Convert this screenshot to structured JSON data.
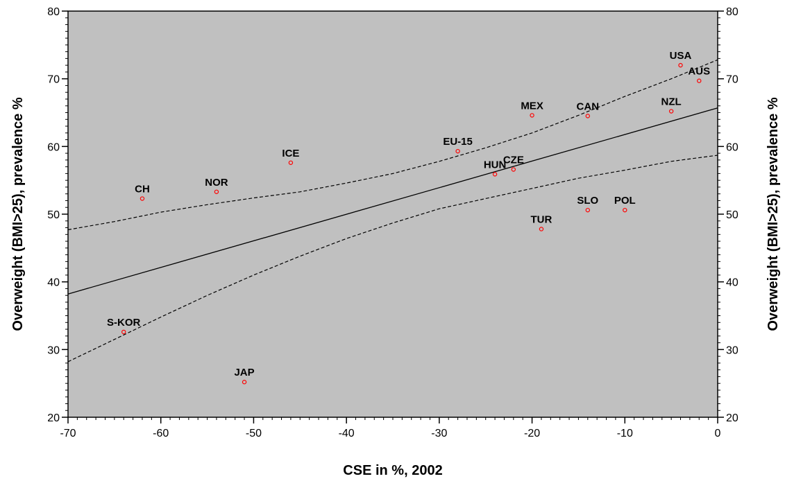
{
  "chart_data": {
    "type": "scatter",
    "xlabel": "CSE in %, 2002",
    "ylabel": "Overweight (BMI>25), prevalence %",
    "ylabel_right": "Overweight (BMI>25), prevalence %",
    "xlim": [
      -70,
      0
    ],
    "ylim": [
      20,
      80
    ],
    "x_ticks": [
      -70,
      -60,
      -50,
      -40,
      -30,
      -20,
      -10,
      0
    ],
    "y_ticks": [
      20,
      30,
      40,
      50,
      60,
      70,
      80
    ],
    "grid": false,
    "plot_background": "#c0c0c0",
    "marker_color": "#ff0000",
    "points": [
      {
        "label": "CH",
        "x": -62,
        "y": 52.3
      },
      {
        "label": "NOR",
        "x": -54,
        "y": 53.3
      },
      {
        "label": "ICE",
        "x": -46,
        "y": 57.6
      },
      {
        "label": "S-KOR",
        "x": -64,
        "y": 32.6
      },
      {
        "label": "JAP",
        "x": -51,
        "y": 25.2
      },
      {
        "label": "EU-15",
        "x": -28,
        "y": 59.3
      },
      {
        "label": "HUN",
        "x": -24,
        "y": 55.9
      },
      {
        "label": "CZE",
        "x": -22,
        "y": 56.6
      },
      {
        "label": "MEX",
        "x": -20,
        "y": 64.6
      },
      {
        "label": "TUR",
        "x": -19,
        "y": 47.8
      },
      {
        "label": "CAN",
        "x": -14,
        "y": 64.5
      },
      {
        "label": "SLO",
        "x": -14,
        "y": 50.6
      },
      {
        "label": "POL",
        "x": -10,
        "y": 50.6
      },
      {
        "label": "NZL",
        "x": -5,
        "y": 65.2
      },
      {
        "label": "USA",
        "x": -4,
        "y": 72.0
      },
      {
        "label": "AUS",
        "x": -2,
        "y": 69.7
      }
    ],
    "regression_line": {
      "x": [
        -70,
        0
      ],
      "y": [
        38.2,
        65.7
      ]
    },
    "confidence_upper": {
      "x": [
        -70,
        -65,
        -60,
        -55,
        -50,
        -45,
        -40,
        -35,
        -30,
        -25,
        -20,
        -15,
        -10,
        -5,
        0
      ],
      "y": [
        47.7,
        48.9,
        50.3,
        51.4,
        52.4,
        53.3,
        54.6,
        56.0,
        57.8,
        59.8,
        62.0,
        64.6,
        67.4,
        70.0,
        72.8
      ]
    },
    "confidence_lower": {
      "x": [
        -70,
        -65,
        -60,
        -55,
        -50,
        -45,
        -40,
        -35,
        -30,
        -25,
        -20,
        -15,
        -10,
        -5,
        0
      ],
      "y": [
        28.2,
        31.5,
        34.8,
        38.0,
        41.0,
        43.8,
        46.4,
        48.7,
        50.8,
        52.3,
        53.8,
        55.3,
        56.5,
        57.8,
        58.7
      ]
    }
  }
}
